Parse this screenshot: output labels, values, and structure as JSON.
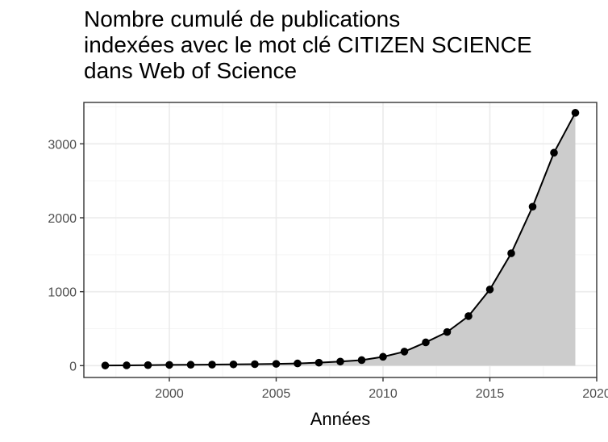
{
  "chart_data": {
    "type": "area",
    "title_lines": [
      "Nombre cumulé de publications",
      "indexées avec le mot clé CITIZEN SCIENCE",
      "dans Web of Science"
    ],
    "xlabel": "Années",
    "ylabel": "",
    "x": [
      1997,
      1998,
      1999,
      2000,
      2001,
      2002,
      2003,
      2004,
      2005,
      2006,
      2007,
      2008,
      2009,
      2010,
      2011,
      2012,
      2013,
      2014,
      2015,
      2016,
      2017,
      2018,
      2019
    ],
    "values": [
      2,
      4,
      7,
      10,
      12,
      14,
      17,
      20,
      24,
      30,
      40,
      55,
      75,
      120,
      190,
      315,
      455,
      670,
      1030,
      1520,
      2150,
      2880,
      3420
    ],
    "xlim": [
      1996,
      2020
    ],
    "ylim": [
      -160,
      3560
    ],
    "x_ticks": [
      2000,
      2005,
      2010,
      2015,
      2020
    ],
    "y_ticks": [
      0,
      1000,
      2000,
      3000
    ],
    "grid": true,
    "legend": "none",
    "colors": {
      "fill": "#cccccc",
      "line": "#000000",
      "point": "#000000",
      "grid_major": "#ebebeb",
      "grid_minor": "#f5f5f5",
      "panel_border": "#333333",
      "tick_text": "#4d4d4d"
    }
  }
}
